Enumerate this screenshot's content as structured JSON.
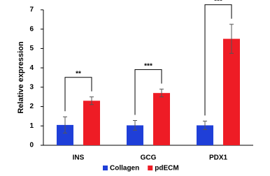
{
  "chart_data": {
    "type": "bar",
    "y_label": "Relative expression",
    "categories": [
      "INS",
      "GCG",
      "PDX1"
    ],
    "series": [
      {
        "name": "Collagen",
        "color": "#1f3fd8",
        "values": [
          1.05,
          1.03,
          1.03
        ],
        "errors": [
          0.42,
          0.25,
          0.22
        ]
      },
      {
        "name": "pdECM",
        "color": "#ee1c25",
        "values": [
          2.3,
          2.7,
          5.5
        ],
        "errors": [
          0.2,
          0.2,
          0.75
        ]
      }
    ],
    "significance": [
      "**",
      "***",
      "***"
    ],
    "ylim": [
      0,
      7
    ],
    "yticks": [
      0,
      1,
      2,
      3,
      4,
      5,
      6,
      7
    ],
    "legend": "bottom"
  }
}
